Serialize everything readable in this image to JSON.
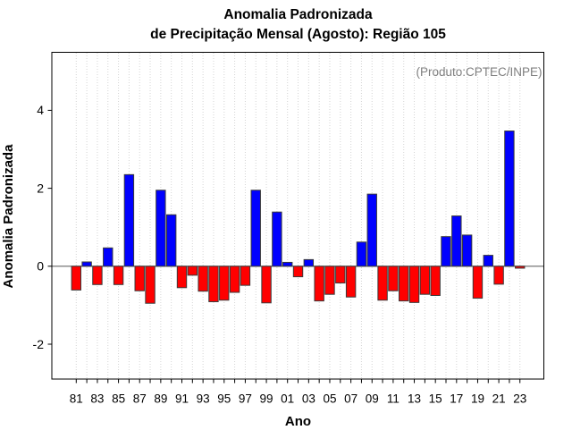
{
  "title": {
    "line1": "Anomalia Padronizada",
    "line2": "de Precipitação Mensal (Agosto): Região 105"
  },
  "annotation": "(Produto:CPTEC/INPE)",
  "axis_labels": {
    "x": "Ano",
    "y": "Anomalia Padronizada"
  },
  "colors": {
    "positive_bar": "#0000FF",
    "negative_bar": "#FF0000",
    "bar_border": "#3a3a3a",
    "grid": "#d4d4d4",
    "zero_line": "#666666",
    "box": "#000000",
    "tick_text": "#000000",
    "annotation_text": "#7f7f7f"
  },
  "chart_data": {
    "type": "bar",
    "title": "Anomalia Padronizada de Precipitação Mensal (Agosto): Região 105",
    "xlabel": "Ano",
    "ylabel": "Anomalia Padronizada",
    "legend": "none",
    "grid": "vertical-dotted-per-year",
    "bar_coloring": "blue if value >= 0, red if value < 0",
    "categories": [
      "81",
      "82",
      "83",
      "84",
      "85",
      "86",
      "87",
      "88",
      "89",
      "90",
      "91",
      "92",
      "93",
      "94",
      "95",
      "96",
      "97",
      "98",
      "99",
      "00",
      "01",
      "02",
      "03",
      "04",
      "05",
      "06",
      "07",
      "08",
      "09",
      "10",
      "11",
      "12",
      "13",
      "14",
      "15",
      "16",
      "17",
      "18",
      "19",
      "20",
      "21",
      "22",
      "23"
    ],
    "values": [
      -0.61,
      0.11,
      -0.47,
      0.47,
      -0.47,
      2.35,
      -0.63,
      -0.95,
      1.95,
      1.32,
      -0.55,
      -0.23,
      -0.64,
      -0.91,
      -0.87,
      -0.67,
      -0.49,
      1.95,
      -0.94,
      1.39,
      0.1,
      -0.27,
      0.17,
      -0.89,
      -0.72,
      -0.43,
      -0.79,
      0.62,
      1.85,
      -0.87,
      -0.63,
      -0.89,
      -0.93,
      -0.72,
      -0.75,
      0.76,
      1.29,
      0.8,
      -0.82,
      0.28,
      -0.46,
      3.47,
      -0.05
    ],
    "x_tick_labels_shown": [
      "81",
      "83",
      "85",
      "87",
      "89",
      "91",
      "93",
      "95",
      "97",
      "99",
      "01",
      "03",
      "05",
      "07",
      "09",
      "11",
      "13",
      "15",
      "17",
      "19",
      "21",
      "23"
    ],
    "y_ticks": [
      -2,
      0,
      2,
      4
    ],
    "ylim": [
      -2.9,
      5.5
    ]
  }
}
